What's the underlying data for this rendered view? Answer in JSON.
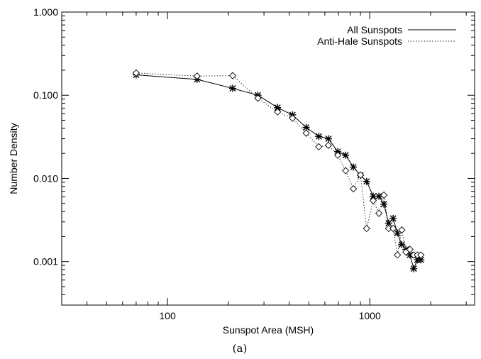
{
  "caption": "(a)",
  "chart_data": {
    "type": "line",
    "xlabel": "Sunspot Area (MSH)",
    "ylabel": "Number Density",
    "xscale": "log",
    "yscale": "log",
    "xlim": [
      30,
      3300
    ],
    "ylim": [
      0.0003,
      1.0
    ],
    "x_major_ticks": [
      100,
      1000
    ],
    "x_tick_labels": [
      "100",
      "1000"
    ],
    "y_major_ticks": [
      0.001,
      0.01,
      0.1,
      1.0
    ],
    "y_tick_labels": [
      "0.001",
      "0.010",
      "0.100",
      "1.000"
    ],
    "legend_position": "top-right",
    "grid": false,
    "series": [
      {
        "name": "All Sunspots",
        "line_style": "solid",
        "marker": "asterisk",
        "x": [
          70,
          140,
          210,
          280,
          350,
          415,
          485,
          560,
          625,
          695,
          760,
          830,
          900,
          965,
          1040,
          1110,
          1175,
          1240,
          1305,
          1370,
          1440,
          1510,
          1580,
          1650,
          1720,
          1790
        ],
        "y": [
          0.176,
          0.155,
          0.121,
          0.1,
          0.071,
          0.058,
          0.041,
          0.032,
          0.03,
          0.021,
          0.019,
          0.0137,
          0.0109,
          0.0092,
          0.0061,
          0.0061,
          0.0049,
          0.0029,
          0.0033,
          0.0022,
          0.0016,
          0.0014,
          0.0012,
          0.00082,
          0.00105,
          0.00105
        ]
      },
      {
        "name": "Anti-Hale Sunspots",
        "line_style": "dotted",
        "marker": "diamond",
        "x": [
          70,
          140,
          210,
          280,
          350,
          415,
          485,
          560,
          625,
          695,
          760,
          830,
          900,
          965,
          1040,
          1110,
          1175,
          1240,
          1305,
          1370,
          1440,
          1510,
          1580,
          1650,
          1720,
          1790
        ],
        "y": [
          0.185,
          0.17,
          0.172,
          0.092,
          0.063,
          0.053,
          0.035,
          0.024,
          0.025,
          0.019,
          0.0124,
          0.0075,
          0.011,
          0.0025,
          0.0054,
          0.0038,
          0.0063,
          0.0025,
          0.0025,
          0.0012,
          0.0024,
          0.0013,
          0.0014,
          0.0012,
          0.0012,
          0.0012
        ]
      }
    ]
  }
}
